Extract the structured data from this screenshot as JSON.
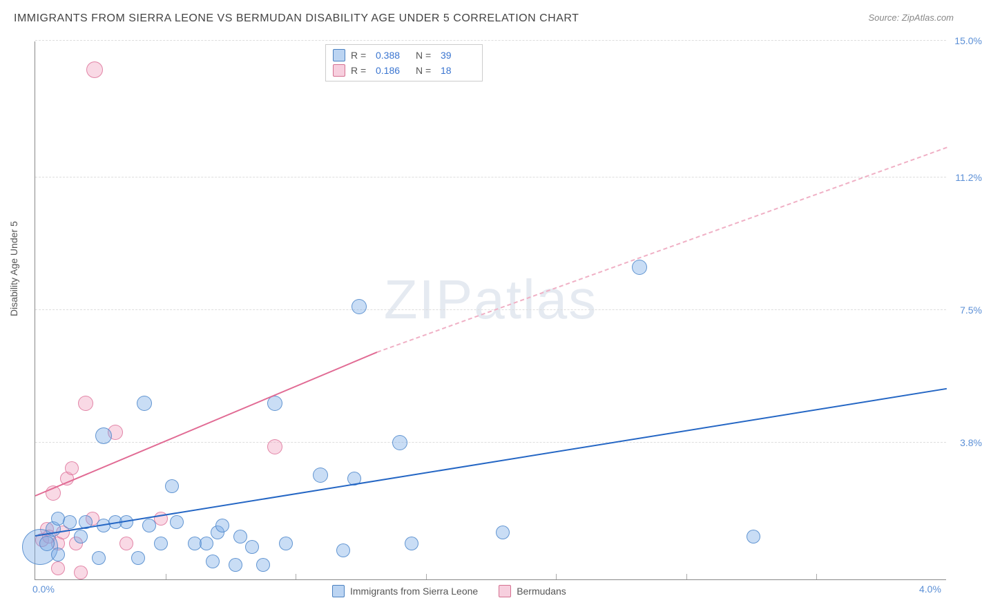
{
  "title": "IMMIGRANTS FROM SIERRA LEONE VS BERMUDAN DISABILITY AGE UNDER 5 CORRELATION CHART",
  "source": "Source: ZipAtlas.com",
  "y_axis_title": "Disability Age Under 5",
  "watermark_a": "ZIP",
  "watermark_b": "atlas",
  "chart": {
    "type": "scatter",
    "xlim": [
      0,
      4.0
    ],
    "ylim": [
      0,
      15.0
    ],
    "x_ticks": [
      0.0,
      4.0
    ],
    "x_tick_labels": [
      "0.0%",
      "4.0%"
    ],
    "y_ticks": [
      3.8,
      7.5,
      11.2,
      15.0
    ],
    "y_tick_labels": [
      "3.8%",
      "7.5%",
      "11.2%",
      "15.0%"
    ],
    "background_color": "#ffffff",
    "grid_color": "#dddddd",
    "axis_color": "#888888",
    "tick_label_color": "#5b8fd6",
    "tick_fontsize": 14,
    "title_fontsize": 16,
    "title_color": "#444444"
  },
  "series": {
    "blue": {
      "label": "Immigrants from Sierra Leone",
      "color_fill": "rgba(120,170,230,0.4)",
      "color_stroke": "#4a80c0",
      "R": "0.388",
      "N": "39",
      "trend": {
        "x1": 0.0,
        "y1": 1.2,
        "x2": 4.0,
        "y2": 5.3,
        "color": "#2466c4",
        "width": 2.5
      },
      "points": [
        {
          "x": 0.02,
          "y": 0.9,
          "r": 26
        },
        {
          "x": 0.05,
          "y": 1.0,
          "r": 11
        },
        {
          "x": 0.08,
          "y": 1.4,
          "r": 11
        },
        {
          "x": 0.1,
          "y": 1.7,
          "r": 10
        },
        {
          "x": 0.1,
          "y": 0.7,
          "r": 10
        },
        {
          "x": 0.15,
          "y": 1.6,
          "r": 10
        },
        {
          "x": 0.2,
          "y": 1.2,
          "r": 10
        },
        {
          "x": 0.22,
          "y": 1.6,
          "r": 10
        },
        {
          "x": 0.28,
          "y": 0.6,
          "r": 10
        },
        {
          "x": 0.3,
          "y": 1.5,
          "r": 10
        },
        {
          "x": 0.3,
          "y": 4.0,
          "r": 12
        },
        {
          "x": 0.35,
          "y": 1.6,
          "r": 10
        },
        {
          "x": 0.4,
          "y": 1.6,
          "r": 10
        },
        {
          "x": 0.45,
          "y": 0.6,
          "r": 10
        },
        {
          "x": 0.48,
          "y": 4.9,
          "r": 11
        },
        {
          "x": 0.5,
          "y": 1.5,
          "r": 10
        },
        {
          "x": 0.55,
          "y": 1.0,
          "r": 10
        },
        {
          "x": 0.6,
          "y": 2.6,
          "r": 10
        },
        {
          "x": 0.62,
          "y": 1.6,
          "r": 10
        },
        {
          "x": 0.7,
          "y": 1.0,
          "r": 10
        },
        {
          "x": 0.75,
          "y": 1.0,
          "r": 10
        },
        {
          "x": 0.78,
          "y": 0.5,
          "r": 10
        },
        {
          "x": 0.8,
          "y": 1.3,
          "r": 10
        },
        {
          "x": 0.82,
          "y": 1.5,
          "r": 10
        },
        {
          "x": 0.88,
          "y": 0.4,
          "r": 10
        },
        {
          "x": 0.9,
          "y": 1.2,
          "r": 10
        },
        {
          "x": 0.95,
          "y": 0.9,
          "r": 10
        },
        {
          "x": 1.0,
          "y": 0.4,
          "r": 10
        },
        {
          "x": 1.05,
          "y": 4.9,
          "r": 11
        },
        {
          "x": 1.1,
          "y": 1.0,
          "r": 10
        },
        {
          "x": 1.25,
          "y": 2.9,
          "r": 11
        },
        {
          "x": 1.35,
          "y": 0.8,
          "r": 10
        },
        {
          "x": 1.4,
          "y": 2.8,
          "r": 10
        },
        {
          "x": 1.42,
          "y": 7.6,
          "r": 11
        },
        {
          "x": 1.6,
          "y": 3.8,
          "r": 11
        },
        {
          "x": 1.65,
          "y": 1.0,
          "r": 10
        },
        {
          "x": 2.05,
          "y": 1.3,
          "r": 10
        },
        {
          "x": 2.65,
          "y": 8.7,
          "r": 11
        },
        {
          "x": 3.15,
          "y": 1.2,
          "r": 10
        }
      ]
    },
    "pink": {
      "label": "Bermudans",
      "color_fill": "rgba(240,160,190,0.4)",
      "color_stroke": "#d47090",
      "R": "0.186",
      "N": "18",
      "trend_solid": {
        "x1": 0.0,
        "y1": 2.3,
        "x2": 1.5,
        "y2": 6.3,
        "color": "#e16b94",
        "width": 2.5
      },
      "trend_dash": {
        "x1": 1.5,
        "y1": 6.3,
        "x2": 4.0,
        "y2": 12.0,
        "color": "#f0b0c5",
        "width": 2
      },
      "points": [
        {
          "x": 0.03,
          "y": 1.1,
          "r": 10
        },
        {
          "x": 0.05,
          "y": 1.4,
          "r": 10
        },
        {
          "x": 0.06,
          "y": 1.2,
          "r": 10
        },
        {
          "x": 0.08,
          "y": 2.4,
          "r": 11
        },
        {
          "x": 0.1,
          "y": 1.0,
          "r": 10
        },
        {
          "x": 0.1,
          "y": 0.3,
          "r": 10
        },
        {
          "x": 0.12,
          "y": 1.3,
          "r": 10
        },
        {
          "x": 0.14,
          "y": 2.8,
          "r": 10
        },
        {
          "x": 0.16,
          "y": 3.1,
          "r": 10
        },
        {
          "x": 0.18,
          "y": 1.0,
          "r": 10
        },
        {
          "x": 0.2,
          "y": 0.2,
          "r": 10
        },
        {
          "x": 0.22,
          "y": 4.9,
          "r": 11
        },
        {
          "x": 0.25,
          "y": 1.7,
          "r": 10
        },
        {
          "x": 0.26,
          "y": 14.2,
          "r": 12
        },
        {
          "x": 0.35,
          "y": 4.1,
          "r": 11
        },
        {
          "x": 0.4,
          "y": 1.0,
          "r": 10
        },
        {
          "x": 0.55,
          "y": 1.7,
          "r": 10
        },
        {
          "x": 1.05,
          "y": 3.7,
          "r": 11
        }
      ]
    }
  },
  "legend_top": {
    "r_label": "R =",
    "n_label": "N ="
  },
  "legend_bottom": {
    "blue_label": "Immigrants from Sierra Leone",
    "pink_label": "Bermudans"
  }
}
